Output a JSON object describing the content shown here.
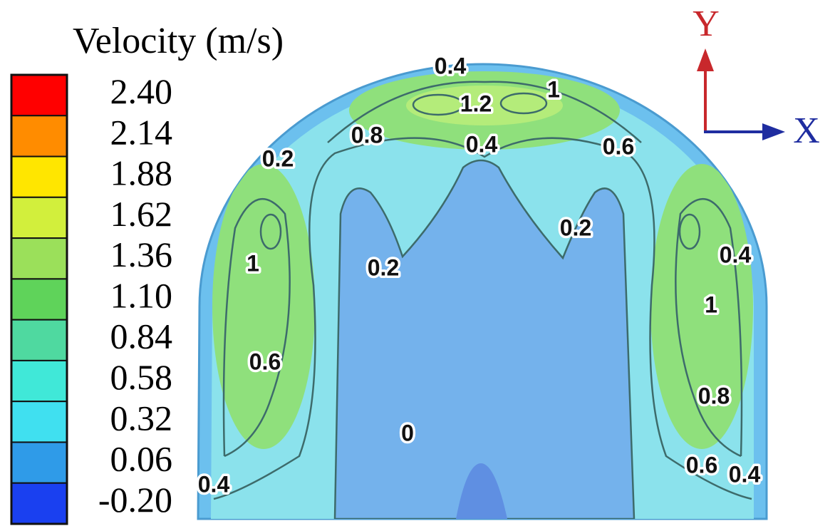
{
  "chart_data": {
    "type": "contour",
    "colorbar": {
      "title": "Velocity (m/s)",
      "ticks": [
        {
          "value": 2.4,
          "label": "2.40"
        },
        2.14,
        1.88,
        1.62,
        1.36,
        {
          "value": 1.1,
          "label": "1.10"
        },
        0.84,
        0.58,
        0.32,
        0.06,
        {
          "value": -0.2,
          "label": "-0.20"
        }
      ],
      "colors": [
        "#ff0000",
        "#ff8c00",
        "#ffe600",
        "#d2ef3c",
        "#9be05a",
        "#5fd35a",
        "#4fd9a0",
        "#40e8d8",
        "#40e0f0",
        "#2f9be8",
        "#1a40f0"
      ]
    },
    "axis_labels": {
      "y": "Y",
      "x": "X"
    },
    "contour_labels": [
      0.4,
      1.2,
      1,
      0.8,
      0.4,
      0.6,
      0.2,
      0.2,
      0.2,
      1,
      0.4,
      1,
      0.6,
      0.8,
      0,
      0.4,
      0.6,
      0.4
    ]
  }
}
